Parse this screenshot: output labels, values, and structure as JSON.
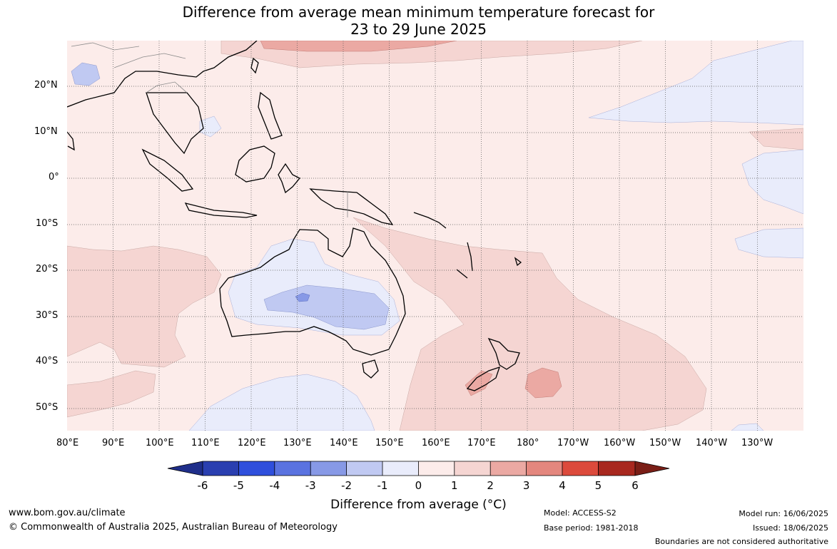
{
  "title_line1": "Difference from average mean minimum temperature forecast for",
  "title_line2": "23 to 29 June 2025",
  "lat_labels": [
    "20°N",
    "10°N",
    "0°",
    "10°S",
    "20°S",
    "30°S",
    "40°S",
    "50°S"
  ],
  "lon_labels": [
    "80°E",
    "90°E",
    "100°E",
    "110°E",
    "120°E",
    "130°E",
    "140°E",
    "150°E",
    "160°E",
    "170°E",
    "180°",
    "170°W",
    "160°W",
    "150°W",
    "140°W",
    "130°W"
  ],
  "colorbar": {
    "title": "Difference from average (°C)",
    "ticks": [
      "-6",
      "-5",
      "-4",
      "-3",
      "-2",
      "-1",
      "0",
      "1",
      "2",
      "3",
      "4",
      "5",
      "6"
    ],
    "colors": [
      "#1f2e8a",
      "#2a3fb0",
      "#2f4fdc",
      "#5a73e0",
      "#8799e6",
      "#c0c9f2",
      "#e9ecfb",
      "#fcecea",
      "#f5d5d2",
      "#eba9a3",
      "#e4877e",
      "#dc4a3c",
      "#a8281f",
      "#7a1e16"
    ]
  },
  "footer": {
    "website": "www.bom.gov.au/climate",
    "copyright": "© Commonwealth of Australia 2025, Australian Bureau of Meteorology",
    "model": "Model: ACCESS-S2",
    "base_period": "Base period: 1981-2018",
    "model_run": "Model run: 16/06/2025",
    "issued": "Issued: 18/06/2025",
    "disclaimer": "Boundaries are not considered authoritative"
  }
}
